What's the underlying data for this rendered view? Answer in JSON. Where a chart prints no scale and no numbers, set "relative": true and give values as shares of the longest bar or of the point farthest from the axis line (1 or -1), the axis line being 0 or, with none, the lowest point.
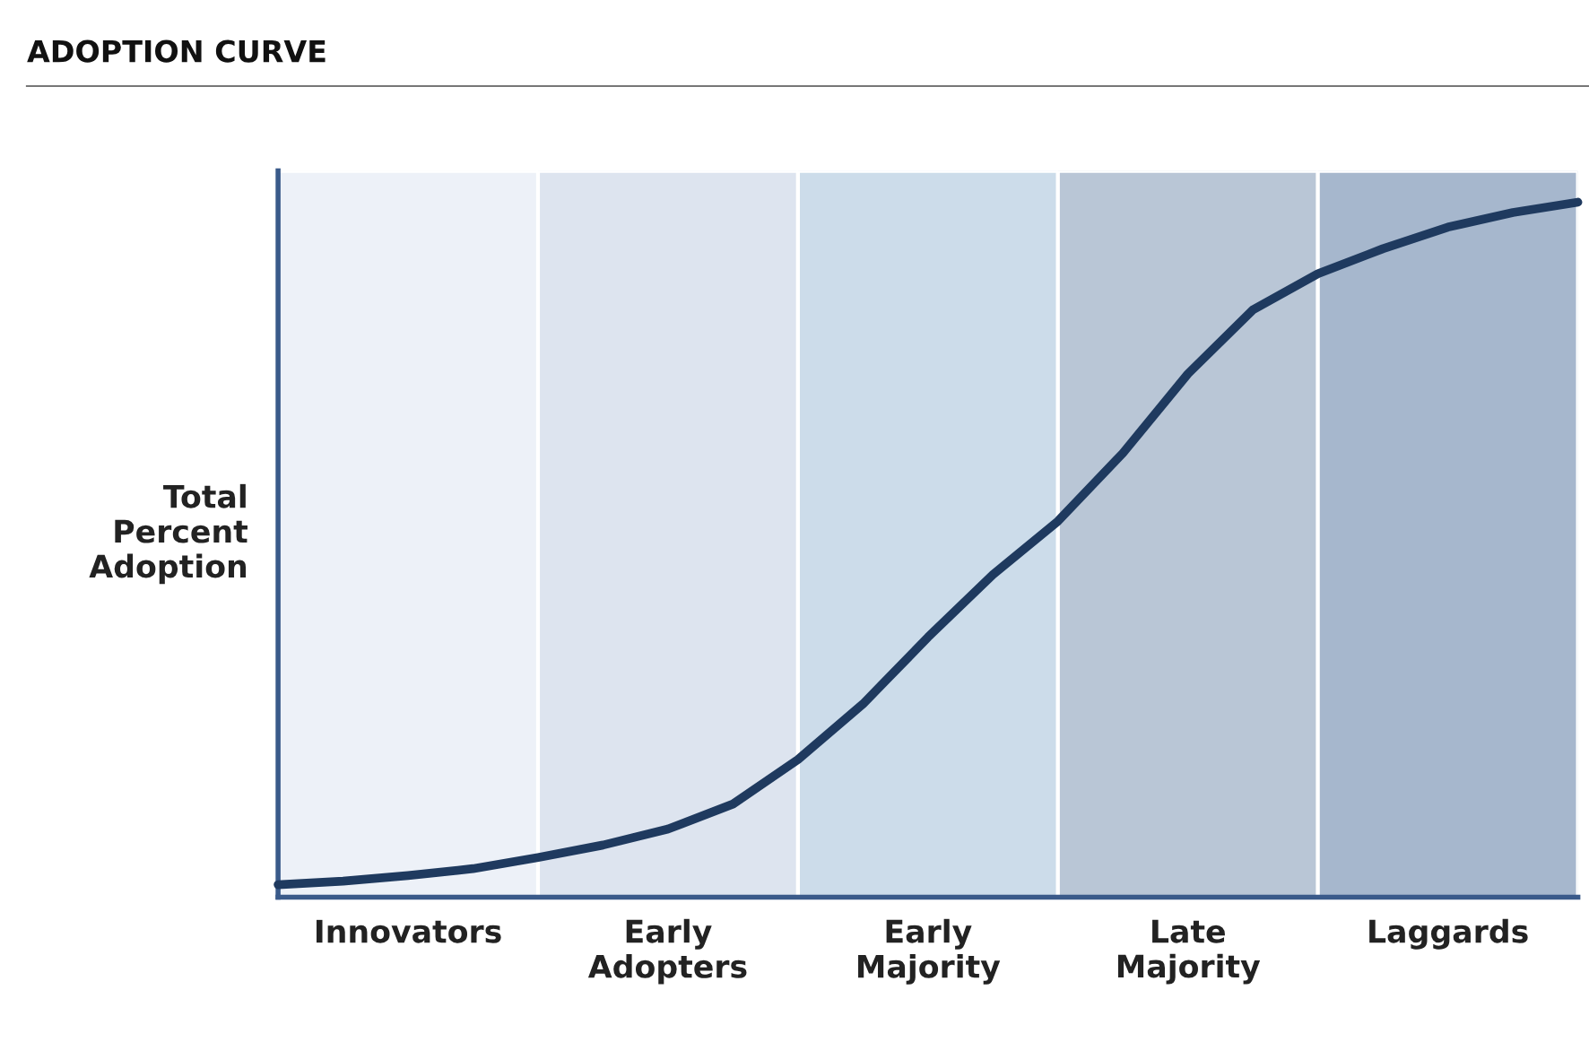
{
  "chart_data": {
    "type": "line",
    "title": "ADOPTION CURVE",
    "ylabel": "Total\nPercent\nAdoption",
    "relative": true,
    "categories": [
      null,
      null,
      null,
      null,
      null,
      null,
      null,
      null,
      null,
      null,
      null,
      null,
      null,
      null,
      null,
      null,
      null,
      null,
      null,
      null,
      null
    ],
    "annotations": [
      "Innovators",
      "Early\nAdopters",
      "Early\nMajority",
      "Late\nMajority",
      "Laggards"
    ],
    "grid": false,
    "legend": false,
    "marker": "none",
    "line_style": "solid",
    "series": [
      {
        "color": "#1f3a5f",
        "values": [
          0.018,
          0.023,
          0.031,
          0.041,
          0.057,
          0.075,
          0.098,
          0.134,
          0.198,
          0.278,
          0.374,
          0.464,
          0.541,
          0.639,
          0.753,
          0.845,
          0.897,
          0.933,
          0.964,
          0.985,
          1
        ]
      }
    ]
  }
}
